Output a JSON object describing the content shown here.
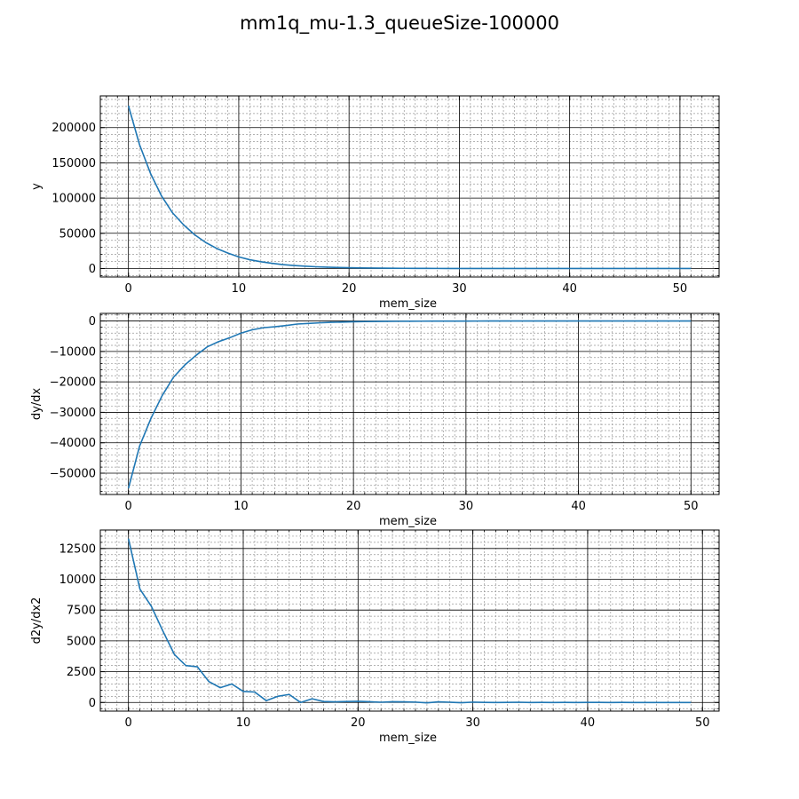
{
  "figure": {
    "title": "mm1q_mu-1.3_queueSize-100000"
  },
  "chart_data": [
    {
      "type": "line",
      "title": "",
      "xlabel": "mem_size",
      "ylabel": "y",
      "xlim": [
        -2.55,
        53.55
      ],
      "ylim": [
        -12000,
        245000
      ],
      "xticks": [
        0,
        10,
        20,
        30,
        40,
        50
      ],
      "xtick_labels": [
        "0",
        "10",
        "20",
        "30",
        "40",
        "50"
      ],
      "yticks": [
        0,
        50000,
        100000,
        150000,
        200000
      ],
      "ytick_labels": [
        "0",
        "50000",
        "100000",
        "150000",
        "200000"
      ],
      "x_minor_step": 1,
      "y_minor_step": 10000,
      "grid": true,
      "color": "#1f77b4",
      "series": [
        {
          "x": [
            0,
            1,
            2,
            3,
            4,
            5,
            6,
            7,
            8,
            9,
            10,
            11,
            12,
            13,
            14,
            15,
            16,
            17,
            18,
            19,
            20,
            21,
            22,
            23,
            24,
            25,
            26,
            27,
            28,
            29,
            30,
            31,
            32,
            33,
            34,
            35,
            36,
            37,
            38,
            39,
            40,
            41,
            42,
            43,
            44,
            45,
            46,
            47,
            48,
            49,
            50,
            51
          ],
          "values": [
            231000,
            176000,
            135000,
            103000,
            79000,
            62000,
            48000,
            37000,
            28500,
            22000,
            16500,
            12500,
            9700,
            7400,
            5600,
            4300,
            3300,
            2500,
            1900,
            1450,
            1100,
            850,
            650,
            500,
            380,
            290,
            220,
            170,
            130,
            100,
            75,
            57,
            44,
            33,
            25,
            19,
            15,
            11,
            9,
            7,
            5,
            4,
            3,
            2,
            2,
            1,
            1,
            1,
            0,
            0,
            0,
            0
          ]
        }
      ]
    },
    {
      "type": "line",
      "title": "",
      "xlabel": "mem_size",
      "ylabel": "dy/dx",
      "xlim": [
        -2.5,
        52.5
      ],
      "ylim": [
        -57000,
        2500
      ],
      "xticks": [
        0,
        10,
        20,
        30,
        40,
        50
      ],
      "xtick_labels": [
        "0",
        "10",
        "20",
        "30",
        "40",
        "50"
      ],
      "yticks": [
        -50000,
        -40000,
        -30000,
        -20000,
        -10000,
        0
      ],
      "ytick_labels": [
        "−50000",
        "−40000",
        "−30000",
        "−20000",
        "−10000",
        "0"
      ],
      "x_minor_step": 1,
      "y_minor_step": 2000,
      "grid": true,
      "color": "#1f77b4",
      "series": [
        {
          "x": [
            0,
            1,
            2,
            3,
            4,
            5,
            6,
            7,
            8,
            9,
            10,
            11,
            12,
            13,
            14,
            15,
            16,
            17,
            18,
            19,
            20,
            21,
            22,
            23,
            24,
            25,
            26,
            27,
            28,
            29,
            30,
            31,
            32,
            33,
            34,
            35,
            36,
            37,
            38,
            39,
            40,
            41,
            42,
            43,
            44,
            45,
            46,
            47,
            48,
            49,
            50
          ],
          "values": [
            -55000,
            -41000,
            -32000,
            -24500,
            -18500,
            -14500,
            -11300,
            -8500,
            -6800,
            -5500,
            -4000,
            -2900,
            -2200,
            -1900,
            -1500,
            -1000,
            -800,
            -600,
            -450,
            -350,
            -250,
            -200,
            -150,
            -120,
            -90,
            -70,
            -50,
            -40,
            -30,
            -25,
            -20,
            -15,
            -12,
            -9,
            -7,
            -5,
            -4,
            -3,
            -2,
            -2,
            -1,
            -1,
            -1,
            -1,
            0,
            0,
            0,
            0,
            0,
            0,
            0
          ]
        }
      ]
    },
    {
      "type": "line",
      "title": "",
      "xlabel": "mem_size",
      "ylabel": "d2y/dx2",
      "xlim": [
        -2.45,
        51.45
      ],
      "ylim": [
        -700,
        14000
      ],
      "xticks": [
        0,
        10,
        20,
        30,
        40,
        50
      ],
      "xtick_labels": [
        "0",
        "10",
        "20",
        "30",
        "40",
        "50"
      ],
      "yticks": [
        0,
        2500,
        5000,
        7500,
        10000,
        12500
      ],
      "ytick_labels": [
        "0",
        "2500",
        "5000",
        "7500",
        "10000",
        "12500"
      ],
      "x_minor_step": 1,
      "y_minor_step": 500,
      "grid": true,
      "color": "#1f77b4",
      "series": [
        {
          "x": [
            0,
            1,
            2,
            3,
            4,
            5,
            6,
            7,
            8,
            9,
            10,
            11,
            12,
            13,
            14,
            15,
            16,
            17,
            18,
            19,
            20,
            21,
            22,
            23,
            24,
            25,
            26,
            27,
            28,
            29,
            30,
            31,
            32,
            33,
            34,
            35,
            36,
            37,
            38,
            39,
            40,
            41,
            42,
            43,
            44,
            45,
            46,
            47,
            48,
            49
          ],
          "values": [
            13300,
            9200,
            7800,
            5800,
            3900,
            3000,
            2900,
            1700,
            1200,
            1500,
            900,
            850,
            150,
            500,
            650,
            0,
            300,
            80,
            50,
            80,
            100,
            60,
            20,
            60,
            50,
            30,
            -30,
            50,
            20,
            -20,
            30,
            10,
            0,
            10,
            20,
            0,
            10,
            0,
            10,
            0,
            10,
            5,
            0,
            5,
            0,
            0,
            0,
            0,
            0,
            0
          ]
        }
      ]
    }
  ]
}
